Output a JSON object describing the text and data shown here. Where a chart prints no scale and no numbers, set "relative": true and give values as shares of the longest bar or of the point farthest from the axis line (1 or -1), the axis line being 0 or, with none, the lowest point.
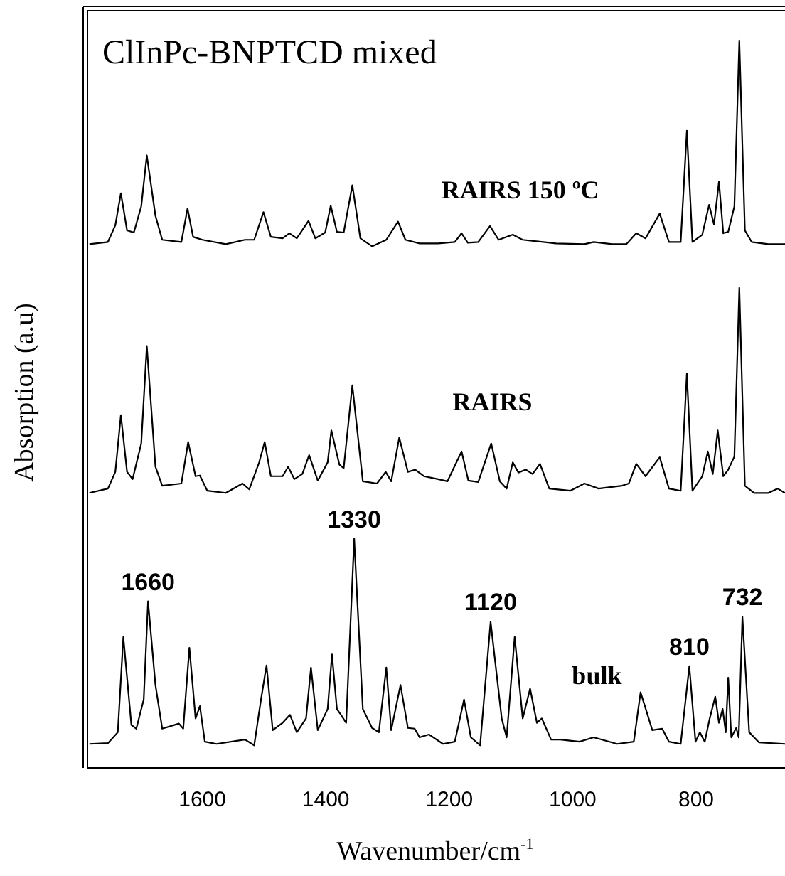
{
  "chart_data": {
    "type": "line",
    "title": "ClInPc-BNPTCD mixed",
    "xlabel": "Wavenumber/cm$^{-1}$",
    "ylabel": "Absorption (a.u)",
    "relative": true,
    "xlim": [
      1785,
      656
    ],
    "xticks": [
      1600,
      1400,
      1200,
      1000,
      800
    ],
    "grid": false,
    "legend": false,
    "marker": "none",
    "line_style": "solid",
    "series": [
      {
        "name": "RAIRS 150 ºC",
        "color": "#000000",
        "x": [
          1783,
          1753,
          1741,
          1732,
          1722,
          1711,
          1699,
          1690,
          1676,
          1665,
          1634,
          1624,
          1615,
          1600,
          1562,
          1531,
          1516,
          1501,
          1489,
          1470,
          1459,
          1447,
          1428,
          1417,
          1401,
          1392,
          1382,
          1371,
          1357,
          1344,
          1325,
          1302,
          1283,
          1271,
          1248,
          1218,
          1191,
          1180,
          1170,
          1153,
          1134,
          1120,
          1097,
          1081,
          1027,
          981,
          966,
          936,
          913,
          897,
          882,
          859,
          844,
          825,
          815,
          806,
          790,
          779,
          771,
          763,
          756,
          748,
          738,
          730,
          721,
          710,
          683,
          656
        ],
        "values": [
          0.72,
          0.723,
          0.746,
          0.79,
          0.739,
          0.736,
          0.772,
          0.842,
          0.759,
          0.726,
          0.723,
          0.769,
          0.73,
          0.726,
          0.72,
          0.726,
          0.726,
          0.764,
          0.73,
          0.728,
          0.735,
          0.728,
          0.752,
          0.728,
          0.736,
          0.773,
          0.737,
          0.736,
          0.801,
          0.728,
          0.717,
          0.726,
          0.751,
          0.726,
          0.721,
          0.721,
          0.723,
          0.735,
          0.722,
          0.723,
          0.745,
          0.726,
          0.733,
          0.726,
          0.721,
          0.72,
          0.723,
          0.72,
          0.72,
          0.735,
          0.728,
          0.762,
          0.723,
          0.723,
          0.876,
          0.723,
          0.733,
          0.774,
          0.747,
          0.806,
          0.735,
          0.737,
          0.772,
          1.0,
          0.739,
          0.723,
          0.72,
          0.72
        ]
      },
      {
        "name": "RAIRS",
        "color": "#000000",
        "x": [
          1783,
          1753,
          1741,
          1732,
          1722,
          1713,
          1699,
          1690,
          1676,
          1665,
          1634,
          1623,
          1611,
          1604,
          1592,
          1562,
          1535,
          1524,
          1508,
          1499,
          1489,
          1470,
          1461,
          1451,
          1438,
          1427,
          1413,
          1397,
          1391,
          1378,
          1371,
          1357,
          1340,
          1317,
          1303,
          1294,
          1281,
          1267,
          1255,
          1241,
          1218,
          1203,
          1180,
          1169,
          1153,
          1132,
          1118,
          1107,
          1097,
          1088,
          1076,
          1065,
          1053,
          1038,
          1004,
          981,
          958,
          920,
          909,
          897,
          882,
          859,
          844,
          825,
          815,
          806,
          790,
          781,
          773,
          765,
          756,
          748,
          738,
          730,
          721,
          706,
          683,
          668,
          656
        ],
        "values": [
          0.378,
          0.384,
          0.407,
          0.485,
          0.407,
          0.397,
          0.446,
          0.58,
          0.414,
          0.388,
          0.391,
          0.448,
          0.401,
          0.402,
          0.381,
          0.378,
          0.391,
          0.383,
          0.42,
          0.448,
          0.401,
          0.401,
          0.414,
          0.397,
          0.404,
          0.43,
          0.395,
          0.42,
          0.464,
          0.417,
          0.412,
          0.526,
          0.394,
          0.391,
          0.407,
          0.394,
          0.454,
          0.407,
          0.41,
          0.401,
          0.397,
          0.394,
          0.435,
          0.395,
          0.393,
          0.446,
          0.394,
          0.384,
          0.42,
          0.406,
          0.41,
          0.404,
          0.418,
          0.384,
          0.381,
          0.391,
          0.384,
          0.388,
          0.391,
          0.418,
          0.401,
          0.427,
          0.384,
          0.381,
          0.542,
          0.381,
          0.401,
          0.435,
          0.404,
          0.464,
          0.401,
          0.41,
          0.428,
          0.66,
          0.388,
          0.378,
          0.378,
          0.384,
          0.378
        ]
      },
      {
        "name": "bulk",
        "color": "#000000",
        "x": [
          1783,
          1753,
          1737,
          1728,
          1715,
          1707,
          1695,
          1688,
          1676,
          1665,
          1638,
          1631,
          1621,
          1611,
          1604,
          1596,
          1577,
          1531,
          1516,
          1505,
          1496,
          1486,
          1470,
          1458,
          1447,
          1432,
          1424,
          1413,
          1397,
          1390,
          1382,
          1377,
          1367,
          1354,
          1340,
          1325,
          1314,
          1302,
          1294,
          1279,
          1267,
          1256,
          1248,
          1233,
          1210,
          1191,
          1176,
          1165,
          1150,
          1133,
          1115,
          1107,
          1094,
          1081,
          1069,
          1058,
          1050,
          1035,
          1020,
          989,
          966,
          928,
          901,
          890,
          871,
          855,
          844,
          825,
          811,
          801,
          794,
          786,
          778,
          769,
          763,
          757,
          752,
          748,
          743,
          735,
          731,
          725,
          714,
          698,
          656
        ],
        "values": [
          0.033,
          0.034,
          0.049,
          0.18,
          0.059,
          0.054,
          0.094,
          0.229,
          0.114,
          0.054,
          0.061,
          0.054,
          0.165,
          0.068,
          0.085,
          0.036,
          0.033,
          0.039,
          0.031,
          0.094,
          0.141,
          0.052,
          0.062,
          0.073,
          0.049,
          0.068,
          0.138,
          0.052,
          0.081,
          0.156,
          0.081,
          0.075,
          0.062,
          0.315,
          0.081,
          0.055,
          0.049,
          0.138,
          0.052,
          0.114,
          0.055,
          0.054,
          0.042,
          0.046,
          0.033,
          0.036,
          0.094,
          0.042,
          0.031,
          0.201,
          0.068,
          0.042,
          0.18,
          0.068,
          0.109,
          0.062,
          0.068,
          0.039,
          0.039,
          0.036,
          0.042,
          0.033,
          0.036,
          0.104,
          0.052,
          0.054,
          0.036,
          0.033,
          0.14,
          0.036,
          0.049,
          0.036,
          0.068,
          0.098,
          0.062,
          0.081,
          0.049,
          0.124,
          0.042,
          0.055,
          0.042,
          0.208,
          0.049,
          0.035,
          0.033
        ]
      }
    ],
    "annotations": [
      {
        "text": "1660",
        "x": 1688,
        "y": 0.229
      },
      {
        "text": "1330",
        "x": 1354,
        "y": 0.315
      },
      {
        "text": "1120",
        "x": 1133,
        "y": 0.201
      },
      {
        "text": "810",
        "x": 811,
        "y": 0.14
      },
      {
        "text": "732",
        "x": 725,
        "y": 0.208
      }
    ]
  }
}
